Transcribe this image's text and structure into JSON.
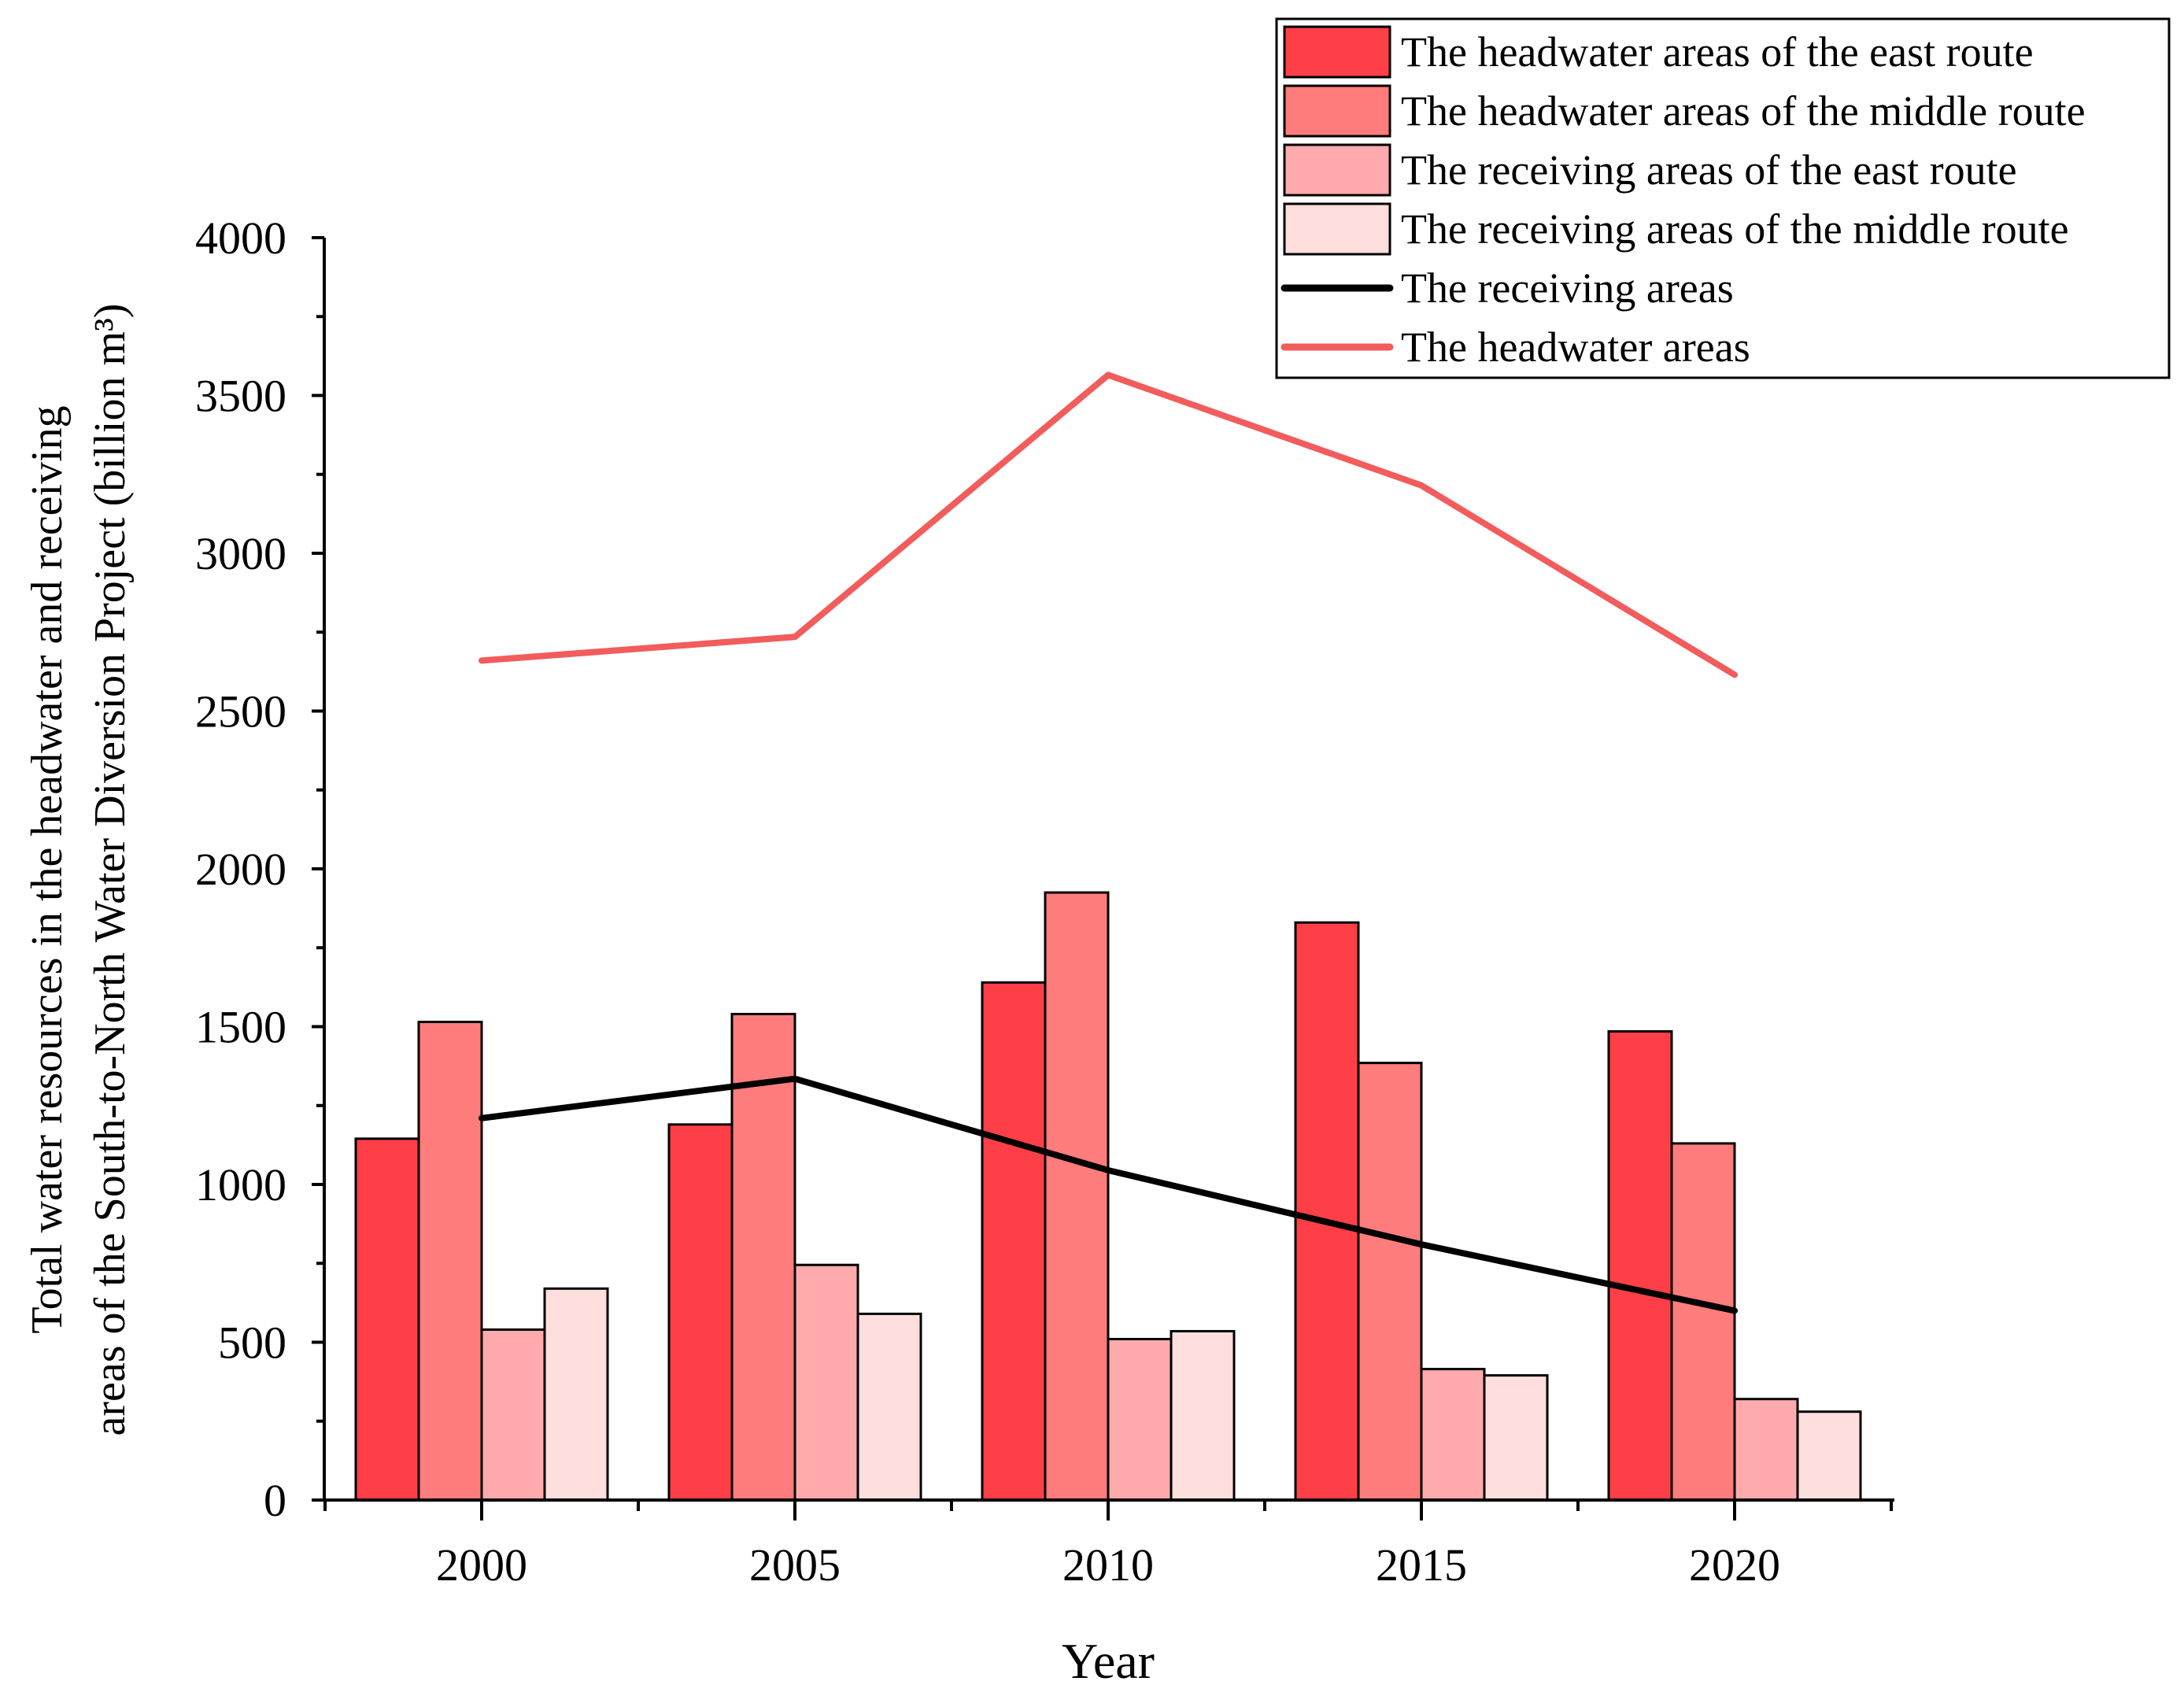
{
  "chart_data": {
    "type": "bar",
    "title": "",
    "xlabel": "Year",
    "ylabel_lines": [
      "Total water resources in the headwater and receiving",
      "areas of the South-to-North Water Diversion Project (billion m³)"
    ],
    "categories": [
      "2000",
      "2005",
      "2010",
      "2015",
      "2020"
    ],
    "ylim": [
      0,
      4000
    ],
    "yticks": [
      "0",
      "500",
      "1000",
      "1500",
      "2000",
      "2500",
      "3000",
      "3500",
      "4000"
    ],
    "legend_position": "top-right",
    "series": [
      {
        "name": "The headwater areas of the east route",
        "kind": "bar",
        "color": "#FF3F47",
        "values": [
          1145,
          1190,
          1640,
          1830,
          1485
        ]
      },
      {
        "name": "The headwater areas of the middle route",
        "kind": "bar",
        "color": "#FF7C7C",
        "values": [
          1515,
          1540,
          1925,
          1385,
          1130
        ]
      },
      {
        "name": "The receiving areas of the east route",
        "kind": "bar",
        "color": "#FFABAD",
        "values": [
          540,
          745,
          510,
          415,
          320
        ]
      },
      {
        "name": "The receiving areas of the middle route",
        "kind": "bar",
        "color": "#FFDEDE",
        "values": [
          670,
          590,
          535,
          395,
          280
        ]
      },
      {
        "name": "The receiving areas",
        "kind": "line",
        "color": "#000000",
        "values": [
          1210,
          1335,
          1045,
          810,
          600
        ]
      },
      {
        "name": "The headwater areas",
        "kind": "line",
        "color": "#F25C5C",
        "values": [
          2660,
          2735,
          3565,
          3215,
          2615
        ]
      }
    ]
  }
}
